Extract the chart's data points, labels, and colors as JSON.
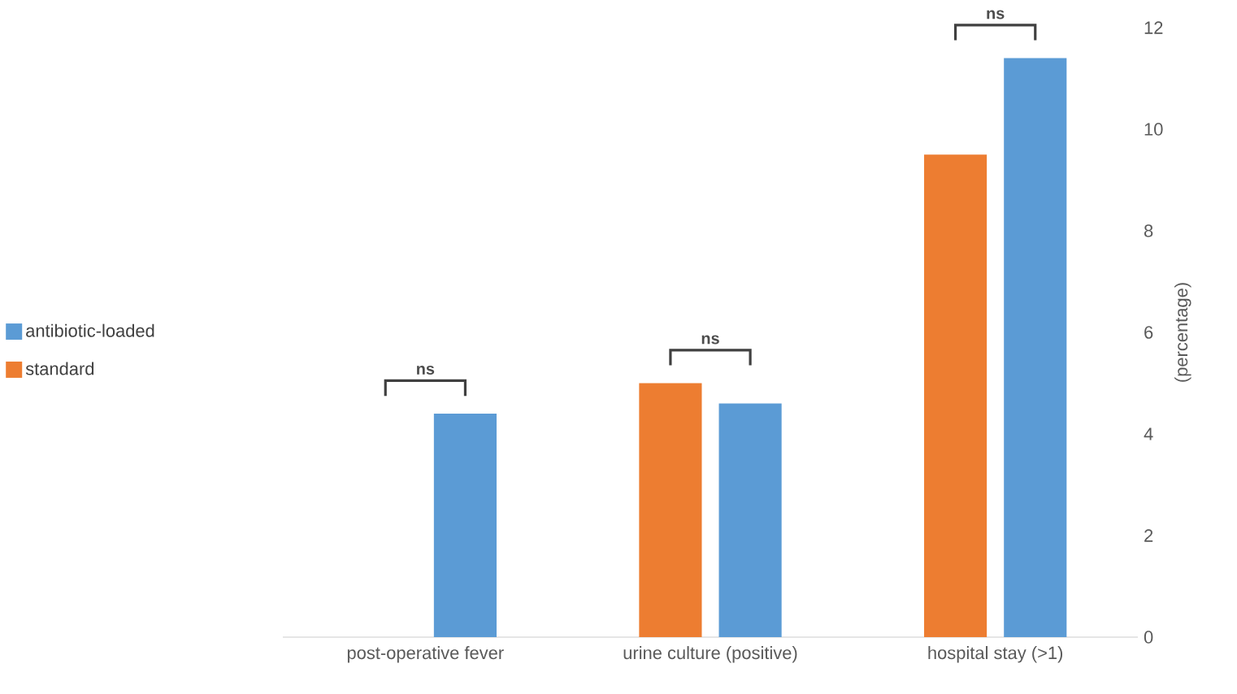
{
  "chart_data": {
    "type": "bar",
    "ylabel": "(percentage)",
    "categories": [
      "post-operative fever",
      "urine culture (positive)",
      "hospital stay (>1)"
    ],
    "series": [
      {
        "name": "standard",
        "color": "#ed7d31",
        "values": [
          0,
          5.0,
          9.5
        ]
      },
      {
        "name": "antibiotic-loaded",
        "color": "#5b9bd5",
        "values": [
          4.4,
          4.6,
          11.4
        ]
      }
    ],
    "ylim": [
      0,
      12
    ],
    "yticks": [
      0,
      2,
      4,
      6,
      8,
      10,
      12
    ],
    "grid": false,
    "legend": "left",
    "annotations": [
      "ns",
      "ns",
      "ns"
    ]
  }
}
